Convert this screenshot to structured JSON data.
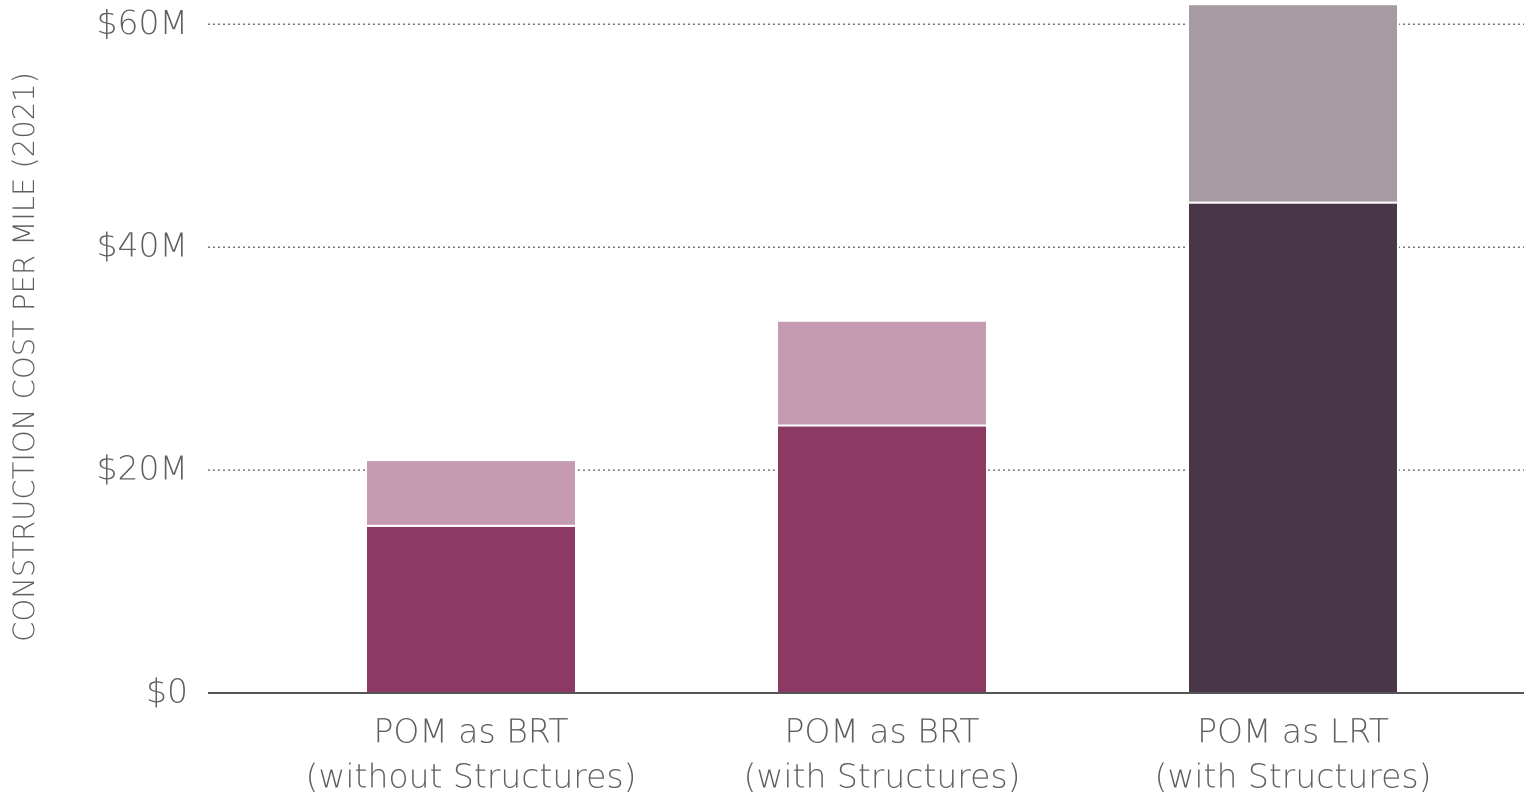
{
  "chart_data": {
    "type": "stacked-bar",
    "y_axis_label": "CONSTRUCTION COST PER MILE (2021)",
    "categories": [
      [
        "POM as BRT",
        "(without Structures)"
      ],
      [
        "POM as BRT",
        "(with Structures)"
      ],
      [
        "POM as LRT",
        "(with Structures)"
      ]
    ],
    "series": [
      {
        "colors": [
          "#8c3a63",
          "#8c3a63",
          "#4a3649"
        ],
        "values": [
          15000000,
          24000000,
          44000000
        ]
      },
      {
        "colors": [
          "#c49bb1",
          "#c49bb1",
          "#a69aa3"
        ],
        "values": [
          5900000,
          9400000,
          17800000
        ]
      }
    ],
    "ylim": [
      0,
      62000000
    ],
    "yticks": [
      {
        "value": 0,
        "label": "$0"
      },
      {
        "value": 20000000,
        "label": "$20M"
      },
      {
        "value": 40000000,
        "label": "$40M"
      },
      {
        "value": 60000000,
        "label": "$60M"
      }
    ],
    "grid": true
  }
}
